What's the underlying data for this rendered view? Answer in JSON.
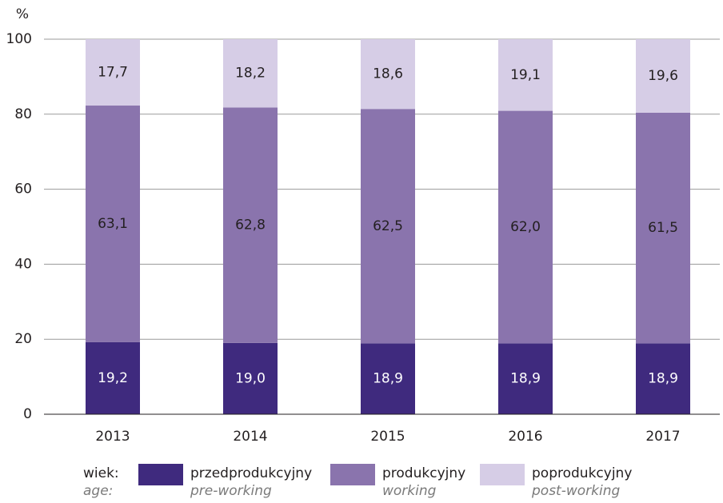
{
  "chart_data": {
    "type": "stacked_bar",
    "y_label": "%",
    "categories": [
      "2013",
      "2014",
      "2015",
      "2016",
      "2017"
    ],
    "series": [
      {
        "name": "przedprodukcyjny",
        "name_en": "pre-working",
        "color": "#3f2a7e",
        "label_color": "#ffffff",
        "values": [
          19.2,
          19.0,
          18.9,
          18.9,
          18.9
        ],
        "value_labels": [
          "19,2",
          "19,0",
          "18,9",
          "18,9",
          "18,9"
        ]
      },
      {
        "name": "produkcyjny",
        "name_en": "working",
        "color": "#8a74ad",
        "label_color": "#231f20",
        "values": [
          63.1,
          62.8,
          62.5,
          62.0,
          61.5
        ],
        "value_labels": [
          "63,1",
          "62,8",
          "62,5",
          "62,0",
          "61,5"
        ]
      },
      {
        "name": "poprodukcyjny",
        "name_en": "post-working",
        "color": "#d6cde6",
        "label_color": "#231f20",
        "values": [
          17.7,
          18.2,
          18.6,
          19.1,
          19.6
        ],
        "value_labels": [
          "17,7",
          "18,2",
          "18,6",
          "19,1",
          "19,6"
        ]
      }
    ],
    "legend_title": "wiek:",
    "legend_title_en": "age:",
    "ylim": [
      0,
      100
    ],
    "yticks": [
      0,
      20,
      40,
      60,
      80,
      100
    ],
    "grid": true
  }
}
